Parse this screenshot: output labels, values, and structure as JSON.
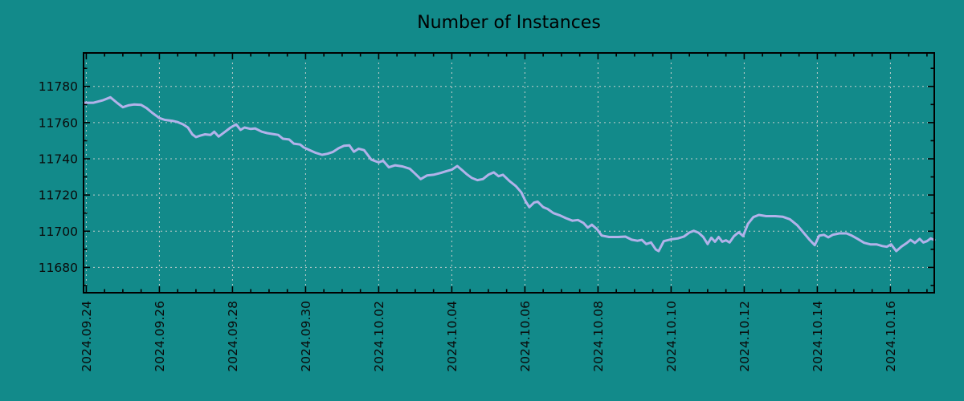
{
  "colors": {
    "background": "#128a8a",
    "line": "#b2b2ea",
    "grid": "#c4cecc",
    "axis": "#000000",
    "text": "#0a0a0a"
  },
  "chart_data": {
    "type": "line",
    "title": "Number of Instances",
    "xlabel": "",
    "ylabel": "",
    "grid": true,
    "legend": "none",
    "x_axis": {
      "tick_labels": [
        "2024.09.24",
        "2024.09.26",
        "2024.09.28",
        "2024.09.30",
        "2024.10.02",
        "2024.10.04",
        "2024.10.06",
        "2024.10.08",
        "2024.10.10",
        "2024.10.12",
        "2024.10.14",
        "2024.10.16"
      ],
      "tick_days": [
        0,
        2,
        4,
        6,
        8,
        10,
        12,
        14,
        16,
        18,
        20,
        22
      ],
      "minor_tick_interval_days": 0.5,
      "range_days": [
        -0.075,
        23.2
      ]
    },
    "y_axis": {
      "tick_labels": [
        "11680",
        "11700",
        "11720",
        "11740",
        "11760",
        "11780"
      ],
      "tick_values": [
        11680,
        11700,
        11720,
        11740,
        11760,
        11780
      ],
      "minor_tick_interval": 10,
      "range": [
        11666,
        11798.5
      ]
    },
    "series": [
      {
        "name": "Number of Instances",
        "points": [
          [
            -0.07,
            11771
          ],
          [
            0.2,
            11771
          ],
          [
            0.45,
            11772.3
          ],
          [
            0.66,
            11774
          ],
          [
            0.85,
            11770.8
          ],
          [
            1.0,
            11768.5
          ],
          [
            1.15,
            11769.5
          ],
          [
            1.3,
            11770
          ],
          [
            1.5,
            11769.8
          ],
          [
            1.65,
            11768
          ],
          [
            1.8,
            11765.5
          ],
          [
            2.0,
            11762.5
          ],
          [
            2.15,
            11761.5
          ],
          [
            2.35,
            11761
          ],
          [
            2.5,
            11760.3
          ],
          [
            2.65,
            11759
          ],
          [
            2.78,
            11757.3
          ],
          [
            2.9,
            11753.5
          ],
          [
            3.0,
            11752
          ],
          [
            3.12,
            11752.8
          ],
          [
            3.25,
            11753.5
          ],
          [
            3.4,
            11753.2
          ],
          [
            3.5,
            11755
          ],
          [
            3.62,
            11752.3
          ],
          [
            3.8,
            11755
          ],
          [
            3.95,
            11757.3
          ],
          [
            4.1,
            11759
          ],
          [
            4.22,
            11756
          ],
          [
            4.33,
            11757.3
          ],
          [
            4.5,
            11756.5
          ],
          [
            4.62,
            11756.8
          ],
          [
            4.8,
            11755
          ],
          [
            4.95,
            11754.2
          ],
          [
            5.1,
            11753.7
          ],
          [
            5.25,
            11753.2
          ],
          [
            5.38,
            11751.1
          ],
          [
            5.55,
            11750.7
          ],
          [
            5.68,
            11748.4
          ],
          [
            5.85,
            11747.9
          ],
          [
            5.95,
            11746.3
          ],
          [
            6.1,
            11744.9
          ],
          [
            6.28,
            11743.3
          ],
          [
            6.45,
            11742.2
          ],
          [
            6.6,
            11742.8
          ],
          [
            6.75,
            11743.8
          ],
          [
            6.9,
            11745.8
          ],
          [
            7.05,
            11747.2
          ],
          [
            7.2,
            11747.4
          ],
          [
            7.32,
            11743.9
          ],
          [
            7.45,
            11745.6
          ],
          [
            7.6,
            11744.8
          ],
          [
            7.8,
            11739.5
          ],
          [
            8.0,
            11738
          ],
          [
            8.12,
            11739
          ],
          [
            8.28,
            11735.3
          ],
          [
            8.45,
            11736.4
          ],
          [
            8.65,
            11735.8
          ],
          [
            8.85,
            11734.5
          ],
          [
            9.0,
            11731.7
          ],
          [
            9.15,
            11728.8
          ],
          [
            9.32,
            11730.8
          ],
          [
            9.5,
            11731.2
          ],
          [
            9.7,
            11732.2
          ],
          [
            9.85,
            11733.2
          ],
          [
            10.0,
            11734
          ],
          [
            10.15,
            11736
          ],
          [
            10.3,
            11733.4
          ],
          [
            10.42,
            11731.3
          ],
          [
            10.55,
            11729.4
          ],
          [
            10.7,
            11728.2
          ],
          [
            10.85,
            11728.8
          ],
          [
            11.0,
            11731.2
          ],
          [
            11.15,
            11732.5
          ],
          [
            11.28,
            11730.4
          ],
          [
            11.4,
            11731.2
          ],
          [
            11.58,
            11727.7
          ],
          [
            11.75,
            11725
          ],
          [
            11.9,
            11721.5
          ],
          [
            12.02,
            11716.5
          ],
          [
            12.12,
            11713.3
          ],
          [
            12.25,
            11715.8
          ],
          [
            12.35,
            11716.3
          ],
          [
            12.5,
            11713.3
          ],
          [
            12.62,
            11712.3
          ],
          [
            12.78,
            11710
          ],
          [
            12.95,
            11708.8
          ],
          [
            13.12,
            11707.2
          ],
          [
            13.3,
            11705.8
          ],
          [
            13.45,
            11706.2
          ],
          [
            13.6,
            11704.6
          ],
          [
            13.72,
            11702
          ],
          [
            13.83,
            11703.6
          ],
          [
            13.97,
            11701.2
          ],
          [
            14.1,
            11697.6
          ],
          [
            14.3,
            11696.8
          ],
          [
            14.55,
            11696.8
          ],
          [
            14.75,
            11697
          ],
          [
            14.92,
            11695.3
          ],
          [
            15.08,
            11694.7
          ],
          [
            15.2,
            11695.2
          ],
          [
            15.32,
            11692.9
          ],
          [
            15.45,
            11693.8
          ],
          [
            15.58,
            11689.9
          ],
          [
            15.66,
            11689
          ],
          [
            15.8,
            11694.5
          ],
          [
            16.0,
            11695.5
          ],
          [
            16.18,
            11696
          ],
          [
            16.35,
            11697
          ],
          [
            16.5,
            11699.3
          ],
          [
            16.62,
            11700.2
          ],
          [
            16.75,
            11699.2
          ],
          [
            16.88,
            11696.8
          ],
          [
            17.0,
            11692.9
          ],
          [
            17.1,
            11696.4
          ],
          [
            17.2,
            11694.2
          ],
          [
            17.3,
            11696.8
          ],
          [
            17.4,
            11694.2
          ],
          [
            17.5,
            11695
          ],
          [
            17.6,
            11693.8
          ],
          [
            17.72,
            11697.3
          ],
          [
            17.85,
            11699.4
          ],
          [
            17.97,
            11697.3
          ],
          [
            18.1,
            11704
          ],
          [
            18.25,
            11707.8
          ],
          [
            18.4,
            11709
          ],
          [
            18.6,
            11708.3
          ],
          [
            18.85,
            11708.3
          ],
          [
            19.05,
            11708
          ],
          [
            19.25,
            11706.6
          ],
          [
            19.45,
            11703.3
          ],
          [
            19.62,
            11699.3
          ],
          [
            19.8,
            11695
          ],
          [
            19.93,
            11692.3
          ],
          [
            20.05,
            11697.5
          ],
          [
            20.18,
            11698
          ],
          [
            20.3,
            11696.6
          ],
          [
            20.42,
            11698
          ],
          [
            20.6,
            11698.8
          ],
          [
            20.8,
            11698.8
          ],
          [
            20.95,
            11697.5
          ],
          [
            21.1,
            11695.8
          ],
          [
            21.28,
            11693.6
          ],
          [
            21.45,
            11692.7
          ],
          [
            21.62,
            11692.7
          ],
          [
            21.78,
            11691.8
          ],
          [
            21.9,
            11691.4
          ],
          [
            22.02,
            11692.7
          ],
          [
            22.16,
            11689
          ],
          [
            22.3,
            11691.5
          ],
          [
            22.45,
            11693.5
          ],
          [
            22.55,
            11695.2
          ],
          [
            22.67,
            11693.5
          ],
          [
            22.8,
            11695.8
          ],
          [
            22.9,
            11693.8
          ],
          [
            23.0,
            11694.5
          ],
          [
            23.1,
            11696
          ],
          [
            23.2,
            11695.2
          ]
        ]
      }
    ]
  }
}
